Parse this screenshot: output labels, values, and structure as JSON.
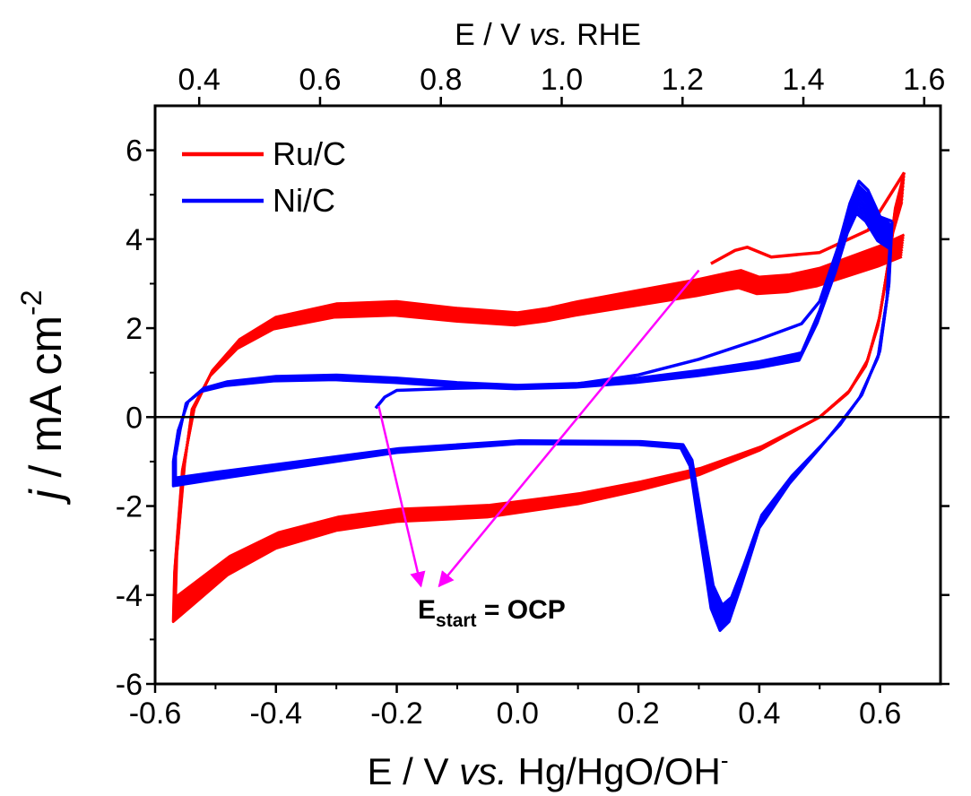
{
  "chart_data": {
    "type": "line",
    "title": "",
    "xlabel": {
      "prefix": "E / V ",
      "italic": "vs.",
      "suffix": " Hg/HgO/OH",
      "sup": "-"
    },
    "x2label": {
      "prefix": "E / V ",
      "italic": "vs.",
      "suffix": " RHE"
    },
    "ylabel": {
      "italic": "j",
      "text": " / mA cm",
      "sup": "-2"
    },
    "xlim": [
      -0.6,
      0.7
    ],
    "ylim": [
      -6,
      7
    ],
    "x_ticks": [
      -0.6,
      -0.4,
      -0.2,
      0.0,
      0.2,
      0.4,
      0.6
    ],
    "x_tick_labels": [
      "-0.6",
      "-0.4",
      "-0.2",
      "0.0",
      "0.2",
      "0.4",
      "0.6"
    ],
    "y_ticks": [
      -6,
      -4,
      -2,
      0,
      2,
      4,
      6
    ],
    "y_tick_labels": [
      "-6",
      "-4",
      "-2",
      "0",
      "2",
      "4",
      "6"
    ],
    "x2_offset": 0.927,
    "x2_ticks": [
      0.4,
      0.6,
      0.8,
      1.0,
      1.2,
      1.4,
      1.6
    ],
    "x2_tick_labels": [
      "0.4",
      "0.6",
      "0.8",
      "1.0",
      "1.2",
      "1.4",
      "1.6"
    ],
    "zero_line": true,
    "legend": {
      "placement": "top-left",
      "entries": [
        {
          "name": "Ru/C",
          "color": "#ff0000"
        },
        {
          "name": "Ni/C",
          "color": "#0000ff"
        }
      ]
    },
    "annotation": {
      "main": "E",
      "sub": "start",
      "rest": " = OCP",
      "color": "#ff00ff",
      "arrows": [
        {
          "from": [
            -0.23,
            0.25
          ],
          "to": [
            -0.16,
            -3.8
          ]
        },
        {
          "from": [
            0.3,
            3.3
          ],
          "to": [
            -0.13,
            -3.8
          ]
        }
      ]
    },
    "series": [
      {
        "name": "Ru/C",
        "color": "#ff0000",
        "cycles": 10,
        "start": [
          [
            0.32,
            3.45
          ],
          [
            0.36,
            3.75
          ],
          [
            0.38,
            3.82
          ],
          [
            0.42,
            3.6
          ],
          [
            0.5,
            3.7
          ],
          [
            0.58,
            4.2
          ],
          [
            0.64,
            5.5
          ]
        ],
        "cycle": [
          [
            0.64,
            5.5
          ],
          [
            0.625,
            4.7
          ],
          [
            0.615,
            3.6
          ],
          [
            0.6,
            2.3
          ],
          [
            0.58,
            1.3
          ],
          [
            0.55,
            0.6
          ],
          [
            0.5,
            0.0
          ],
          [
            0.4,
            -0.75
          ],
          [
            0.3,
            -1.3
          ],
          [
            0.2,
            -1.65
          ],
          [
            0.1,
            -1.95
          ],
          [
            0.05,
            -2.05
          ],
          [
            -0.05,
            -2.25
          ],
          [
            -0.12,
            -2.3
          ],
          [
            -0.2,
            -2.35
          ],
          [
            -0.3,
            -2.55
          ],
          [
            -0.4,
            -2.95
          ],
          [
            -0.48,
            -3.55
          ],
          [
            -0.54,
            -4.25
          ],
          [
            -0.57,
            -4.6
          ],
          [
            -0.568,
            -3.5
          ],
          [
            -0.555,
            -1.2
          ],
          [
            -0.535,
            0.2
          ],
          [
            -0.505,
            1.05
          ],
          [
            -0.46,
            1.75
          ],
          [
            -0.4,
            2.25
          ],
          [
            -0.3,
            2.55
          ],
          [
            -0.2,
            2.6
          ],
          [
            -0.1,
            2.45
          ],
          [
            0.0,
            2.35
          ],
          [
            0.05,
            2.45
          ],
          [
            0.1,
            2.6
          ],
          [
            0.2,
            2.85
          ],
          [
            0.3,
            3.1
          ],
          [
            0.35,
            3.25
          ],
          [
            0.37,
            3.3
          ],
          [
            0.4,
            3.15
          ],
          [
            0.45,
            3.2
          ],
          [
            0.5,
            3.35
          ],
          [
            0.55,
            3.6
          ],
          [
            0.6,
            3.85
          ],
          [
            0.64,
            4.1
          ]
        ]
      },
      {
        "name": "Ni/C",
        "color": "#0000ff",
        "cycles": 10,
        "start": [
          [
            -0.235,
            0.2
          ],
          [
            -0.22,
            0.45
          ],
          [
            -0.2,
            0.6
          ],
          [
            -0.1,
            0.65
          ],
          [
            0.0,
            0.68
          ],
          [
            0.1,
            0.75
          ],
          [
            0.2,
            0.95
          ],
          [
            0.3,
            1.3
          ],
          [
            0.4,
            1.75
          ],
          [
            0.47,
            2.1
          ],
          [
            0.5,
            2.6
          ],
          [
            0.53,
            3.8
          ],
          [
            0.55,
            4.8
          ],
          [
            0.565,
            5.3
          ],
          [
            0.58,
            5.1
          ],
          [
            0.6,
            4.5
          ],
          [
            0.62,
            4.4
          ]
        ],
        "cycle": [
          [
            0.62,
            4.4
          ],
          [
            0.615,
            3.0
          ],
          [
            0.6,
            1.5
          ],
          [
            0.57,
            0.5
          ],
          [
            0.53,
            -0.2
          ],
          [
            0.5,
            -0.7
          ],
          [
            0.45,
            -1.5
          ],
          [
            0.4,
            -2.5
          ],
          [
            0.37,
            -3.8
          ],
          [
            0.35,
            -4.6
          ],
          [
            0.335,
            -4.8
          ],
          [
            0.32,
            -4.3
          ],
          [
            0.3,
            -2.5
          ],
          [
            0.285,
            -1.1
          ],
          [
            0.27,
            -0.7
          ],
          [
            0.2,
            -0.62
          ],
          [
            0.0,
            -0.6
          ],
          [
            -0.2,
            -0.8
          ],
          [
            -0.4,
            -1.2
          ],
          [
            -0.5,
            -1.4
          ],
          [
            -0.57,
            -1.55
          ],
          [
            -0.57,
            -1.0
          ],
          [
            -0.562,
            -0.3
          ],
          [
            -0.545,
            0.35
          ],
          [
            -0.52,
            0.65
          ],
          [
            -0.48,
            0.8
          ],
          [
            -0.4,
            0.92
          ],
          [
            -0.3,
            0.95
          ],
          [
            -0.2,
            0.88
          ],
          [
            -0.1,
            0.78
          ],
          [
            0.0,
            0.72
          ],
          [
            0.1,
            0.76
          ],
          [
            0.2,
            0.88
          ],
          [
            0.3,
            1.05
          ],
          [
            0.4,
            1.25
          ],
          [
            0.47,
            1.45
          ],
          [
            0.5,
            2.4
          ],
          [
            0.53,
            3.7
          ],
          [
            0.55,
            4.7
          ],
          [
            0.565,
            5.2
          ],
          [
            0.58,
            5.0
          ],
          [
            0.6,
            4.5
          ],
          [
            0.62,
            4.3
          ]
        ]
      }
    ]
  }
}
